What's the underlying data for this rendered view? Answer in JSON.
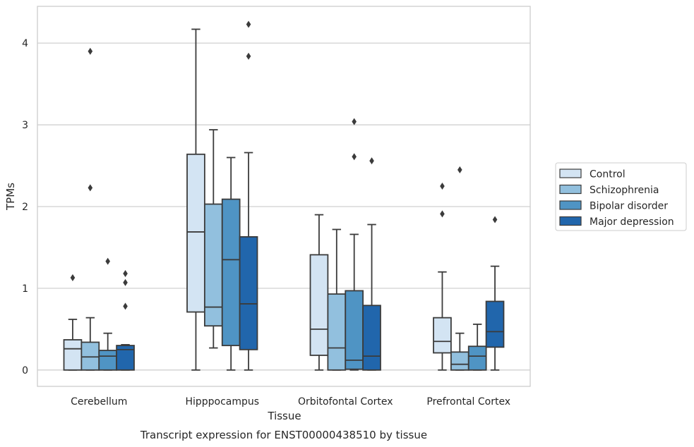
{
  "caption": "Transcript expression for ENST00000438510 by tissue",
  "chart_data": {
    "type": "box",
    "title": "",
    "xlabel": "Tissue",
    "ylabel": "TPMs",
    "ylim": [
      -0.2,
      4.45
    ],
    "yticks": [
      0,
      1,
      2,
      3,
      4
    ],
    "grid": "horizontal",
    "legend_placement": "right",
    "categories": [
      "Cerebellum",
      "Hipppocampus",
      "Orbitofontal Cortex",
      "Prefrontal Cortex"
    ],
    "series": [
      {
        "name": "Control",
        "color": "#d3e4f3",
        "boxes": [
          {
            "whisker_low": 0,
            "q1": 0,
            "median": 0.26,
            "q3": 0.37,
            "whisker_high": 0.62,
            "outliers": [
              1.13
            ]
          },
          {
            "whisker_low": 0,
            "q1": 0.71,
            "median": 1.69,
            "q3": 2.64,
            "whisker_high": 4.17,
            "outliers": []
          },
          {
            "whisker_low": 0,
            "q1": 0.18,
            "median": 0.5,
            "q3": 1.41,
            "whisker_high": 1.9,
            "outliers": []
          },
          {
            "whisker_low": 0,
            "q1": 0.21,
            "median": 0.35,
            "q3": 0.64,
            "whisker_high": 1.2,
            "outliers": [
              1.91,
              2.25
            ]
          }
        ]
      },
      {
        "name": "Schizophrenia",
        "color": "#92c0de",
        "boxes": [
          {
            "whisker_low": 0,
            "q1": 0,
            "median": 0.16,
            "q3": 0.34,
            "whisker_high": 0.64,
            "outliers": [
              2.23,
              3.9
            ]
          },
          {
            "whisker_low": 0.27,
            "q1": 0.54,
            "median": 0.77,
            "q3": 2.03,
            "whisker_high": 2.94,
            "outliers": []
          },
          {
            "whisker_low": 0,
            "q1": 0,
            "median": 0.27,
            "q3": 0.93,
            "whisker_high": 1.72,
            "outliers": []
          },
          {
            "whisker_low": 0,
            "q1": 0,
            "median": 0.07,
            "q3": 0.22,
            "whisker_high": 0.45,
            "outliers": [
              2.45
            ]
          }
        ]
      },
      {
        "name": "Bipolar disorder",
        "color": "#4f94c4",
        "boxes": [
          {
            "whisker_low": 0,
            "q1": 0,
            "median": 0.17,
            "q3": 0.24,
            "whisker_high": 0.45,
            "outliers": [
              1.33
            ]
          },
          {
            "whisker_low": 0,
            "q1": 0.3,
            "median": 1.35,
            "q3": 2.09,
            "whisker_high": 2.6,
            "outliers": []
          },
          {
            "whisker_low": 0,
            "q1": 0.01,
            "median": 0.12,
            "q3": 0.97,
            "whisker_high": 1.66,
            "outliers": [
              2.61,
              3.04
            ]
          },
          {
            "whisker_low": 0,
            "q1": 0,
            "median": 0.17,
            "q3": 0.29,
            "whisker_high": 0.56,
            "outliers": []
          }
        ]
      },
      {
        "name": "Major depression",
        "color": "#2166ac",
        "boxes": [
          {
            "whisker_low": 0,
            "q1": 0,
            "median": 0.25,
            "q3": 0.3,
            "whisker_high": 0.31,
            "outliers": [
              0.78,
              1.07,
              1.18
            ]
          },
          {
            "whisker_low": 0,
            "q1": 0.25,
            "median": 0.81,
            "q3": 1.63,
            "whisker_high": 2.66,
            "outliers": [
              3.84,
              4.23
            ]
          },
          {
            "whisker_low": 0,
            "q1": 0,
            "median": 0.17,
            "q3": 0.79,
            "whisker_high": 1.78,
            "outliers": [
              2.56
            ]
          },
          {
            "whisker_low": 0,
            "q1": 0.28,
            "median": 0.47,
            "q3": 0.84,
            "whisker_high": 1.27,
            "outliers": [
              1.84
            ]
          }
        ]
      }
    ]
  }
}
